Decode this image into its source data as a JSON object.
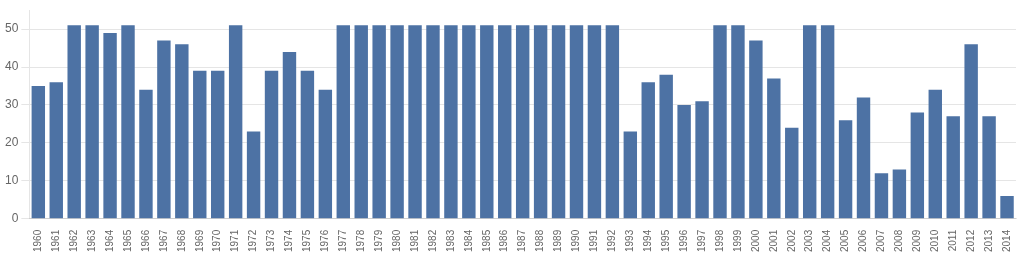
{
  "chart_data": {
    "type": "bar",
    "categories": [
      "1960",
      "1961",
      "1962",
      "1963",
      "1964",
      "1965",
      "1966",
      "1967",
      "1968",
      "1969",
      "1970",
      "1971",
      "1972",
      "1973",
      "1974",
      "1975",
      "1976",
      "1977",
      "1978",
      "1979",
      "1980",
      "1981",
      "1982",
      "1983",
      "1984",
      "1985",
      "1986",
      "1987",
      "1988",
      "1989",
      "1990",
      "1991",
      "1992",
      "1993",
      "1994",
      "1995",
      "1996",
      "1997",
      "1998",
      "1999",
      "2000",
      "2001",
      "2002",
      "2003",
      "2004",
      "2005",
      "2006",
      "2007",
      "2008",
      "2009",
      "2010",
      "2011",
      "2012",
      "2013",
      "2014"
    ],
    "values": [
      35,
      36,
      51,
      51,
      49,
      51,
      34,
      47,
      46,
      39,
      39,
      51,
      23,
      39,
      44,
      39,
      34,
      51,
      51,
      51,
      51,
      51,
      51,
      51,
      51,
      51,
      51,
      51,
      51,
      51,
      51,
      51,
      51,
      23,
      36,
      38,
      30,
      31,
      51,
      51,
      47,
      37,
      24,
      51,
      51,
      26,
      32,
      12,
      13,
      28,
      34,
      27,
      46,
      27,
      6
    ],
    "color": "#4D72A4",
    "ylim": [
      0,
      55
    ],
    "yticks": [
      0,
      10,
      20,
      30,
      40,
      50
    ],
    "grid": true
  }
}
